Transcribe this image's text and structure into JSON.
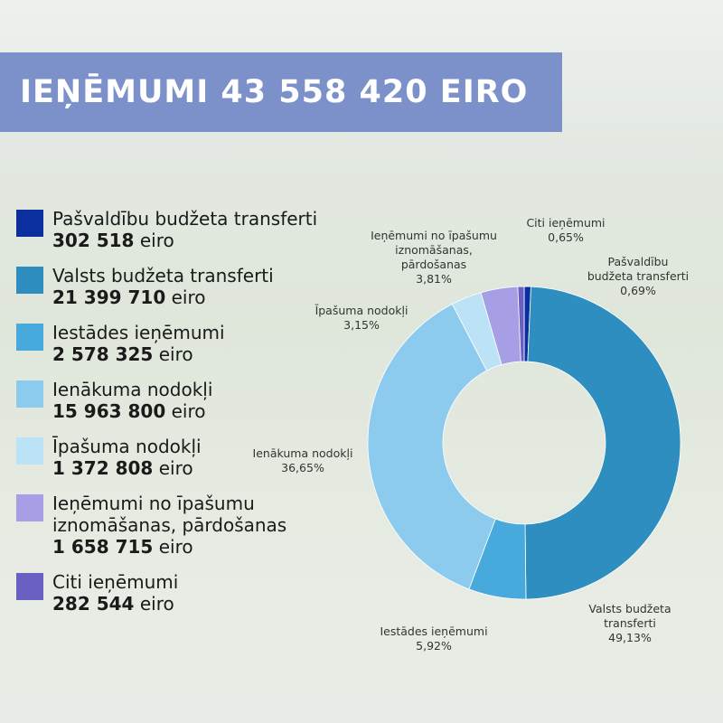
{
  "chart_data": {
    "type": "pie",
    "title": "IEŅĒMUMI 43 558 420 EIRO",
    "categories": [
      "Pašvaldību budžeta transferti",
      "Valsts budžeta transferti",
      "Iestādes ieņēmumi",
      "Ienākuma nodokļi",
      "Īpašuma nodokļi",
      "Ieņēmumi no īpašumu iznomāšanas, pārdošanas",
      "Citi ieņēmumi"
    ],
    "values": [
      0.69,
      49.13,
      5.92,
      36.65,
      3.15,
      3.81,
      0.65
    ],
    "value_labels": [
      "0,69%",
      "49,13%",
      "5,92%",
      "36,65%",
      "3,15%",
      "3,81%",
      "0,65%"
    ],
    "colors": [
      "#0b2f9e",
      "#2e8ec0",
      "#48a9dc",
      "#8dcbee",
      "#bce2f6",
      "#a69fe6",
      "#6a60c4"
    ],
    "amounts": [
      "302 518",
      "21 399 710",
      "2 578 325",
      "15 963 800",
      "1 372 808",
      "1 658 715",
      "282 544"
    ],
    "amount_unit": "eiro"
  }
}
